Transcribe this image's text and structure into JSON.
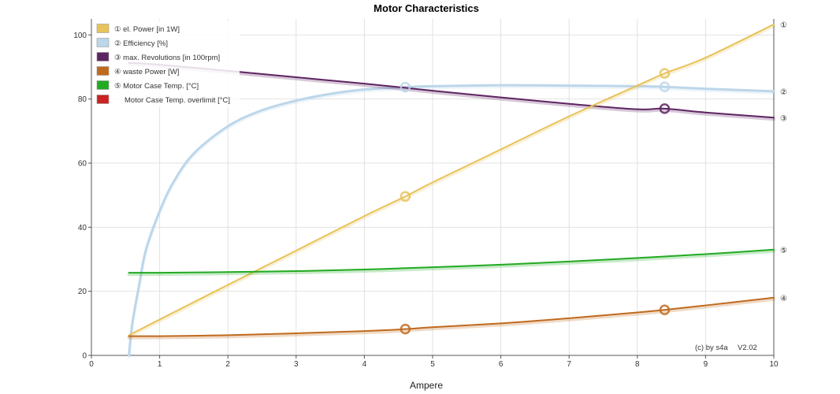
{
  "chart_data": {
    "type": "line",
    "title": "Motor Characteristics",
    "xlabel": "Ampere",
    "ylabel": "",
    "xlim": [
      0,
      10
    ],
    "ylim": [
      0,
      105
    ],
    "x_ticks": [
      0,
      1,
      2,
      3,
      4,
      5,
      6,
      7,
      8,
      9,
      10
    ],
    "y_ticks": [
      0,
      20,
      40,
      60,
      80,
      100
    ],
    "grid": true,
    "legend_position": "top-left",
    "credit": "(c) by s4a",
    "version": "V2.02",
    "series": [
      {
        "name": "① el. Power [in 1W]",
        "end_label": "①",
        "color": "#e8c25a",
        "x": [
          0.55,
          1,
          2,
          3,
          4,
          4.6,
          5,
          6,
          7,
          8,
          8.4,
          9,
          10
        ],
        "y": [
          6.3,
          11.2,
          22,
          32.7,
          43.5,
          49.6,
          54,
          64.3,
          74.6,
          84.2,
          88,
          92.9,
          103.3
        ],
        "markers_x": [
          4.6,
          8.4
        ]
      },
      {
        "name": "② Efficiency [%]",
        "end_label": "②",
        "color": "#bcd6ea",
        "x": [
          0.55,
          0.6,
          0.7,
          0.8,
          1,
          1.2,
          1.5,
          2,
          2.5,
          3,
          3.5,
          4,
          4.6,
          5,
          6,
          7,
          8,
          8.4,
          9,
          10
        ],
        "y": [
          0,
          10,
          22,
          33,
          45,
          54,
          63,
          71.5,
          76.5,
          79.5,
          81.6,
          83,
          83.7,
          84,
          84.3,
          84.2,
          84,
          83.8,
          83.2,
          82.4
        ],
        "markers_x": [
          4.6,
          8.4
        ]
      },
      {
        "name": "③ max. Revolutions [in 100rpm]",
        "end_label": "③",
        "color": "#5e2462",
        "x": [
          0.55,
          1,
          2,
          3,
          4,
          4.6,
          5,
          6,
          7,
          8,
          8.4,
          9,
          10
        ],
        "y": [
          91.3,
          90.7,
          88.8,
          86.8,
          84.8,
          83.5,
          82.6,
          80.5,
          78.5,
          76.8,
          77,
          75.8,
          74.2
        ],
        "markers_x": [
          8.4
        ]
      },
      {
        "name": "④ waste Power [W]",
        "end_label": "④",
        "color": "#c06a1e",
        "x": [
          0.55,
          1,
          2,
          3,
          4,
          4.6,
          5,
          6,
          7,
          8,
          8.4,
          9,
          10
        ],
        "y": [
          6,
          6,
          6.3,
          6.9,
          7.6,
          8.2,
          8.8,
          10,
          11.6,
          13.4,
          14.2,
          15.6,
          18
        ],
        "markers_x": [
          4.6,
          8.4
        ]
      },
      {
        "name": "⑤ Motor Case Temp. [°C]",
        "end_label": "⑤",
        "color": "#22aa22",
        "x": [
          0.55,
          1,
          2,
          3,
          4,
          5,
          6,
          7,
          8,
          9,
          10
        ],
        "y": [
          25.8,
          25.8,
          26,
          26.3,
          26.8,
          27.5,
          28.3,
          29.3,
          30.4,
          31.6,
          33
        ],
        "markers_x": []
      },
      {
        "name": "Motor Case Temp. overlimit [°C]",
        "end_label": "",
        "color": "#cc2222",
        "x": [],
        "y": [],
        "markers_x": []
      }
    ]
  }
}
